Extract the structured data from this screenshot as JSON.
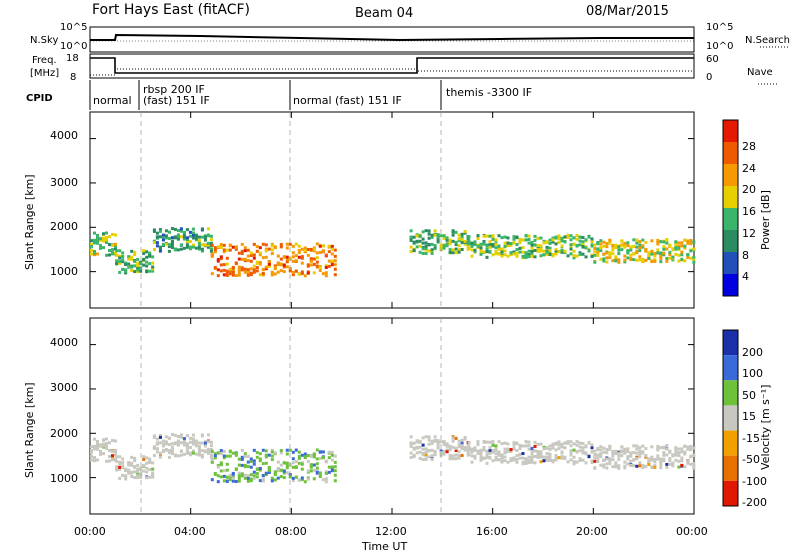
{
  "header": {
    "title": "Fort Hays East (fitACF)",
    "beam": "Beam 04",
    "date": "08/Mar/2015"
  },
  "noise_panel": {
    "left_label": "N.Sky",
    "left_ticks": [
      "10^5",
      "10^0"
    ],
    "right_label": "N.Search",
    "right_ticks": [
      "10^5",
      "10^0"
    ]
  },
  "freq_panel": {
    "left_label_1": "Freq.",
    "left_label_2": "[MHz]",
    "left_ticks": [
      "18",
      "8"
    ],
    "right_label": "Nave",
    "right_ticks": [
      "60",
      "0"
    ],
    "cpid_label": "CPID"
  },
  "cpid_segments": [
    {
      "text": "normal",
      "start_hour": 0.0
    },
    {
      "text": "rbsp 200 IF",
      "start_hour": 2.0
    },
    {
      "text": "(fast) 151 IF",
      "start_hour": 2.0
    },
    {
      "text": "normal (fast) 151 IF",
      "start_hour": 8.0
    },
    {
      "text": "themis -3300 IF",
      "start_hour": 14.0
    }
  ],
  "power_panel": {
    "ylabel": "Slant Range [km]",
    "yticks": [
      "4000",
      "3000",
      "2000",
      "1000"
    ],
    "colorbar_label": "Power [dB]",
    "colorbar_ticks": [
      "28",
      "24",
      "20",
      "16",
      "12",
      "8",
      "4"
    ]
  },
  "velocity_panel": {
    "ylabel": "Slant Range [km]",
    "yticks": [
      "4000",
      "3000",
      "2000",
      "1000"
    ],
    "colorbar_label": "Velocity [m s⁻¹]",
    "colorbar_ticks": [
      "200",
      "100",
      "50",
      "15",
      "-15",
      "-50",
      "-100",
      "-200"
    ]
  },
  "xaxis": {
    "label": "Time UT",
    "ticks": [
      "00:00",
      "04:00",
      "08:00",
      "12:00",
      "16:00",
      "20:00",
      "00:00"
    ]
  },
  "chart_data": {
    "type": "heatmap",
    "x_range_hours": [
      0,
      24
    ],
    "y_range_km": [
      180,
      4600
    ],
    "scatter_bands": [
      {
        "start_hour": 0.0,
        "end_hour": 1.0,
        "center_km": 1650,
        "power_db": 16
      },
      {
        "start_hour": 1.0,
        "end_hour": 2.5,
        "center_km": 1250,
        "power_db": 14
      },
      {
        "start_hour": 2.5,
        "end_hour": 4.8,
        "center_km": 1750,
        "power_db": 12
      },
      {
        "start_hour": 4.8,
        "end_hour": 9.8,
        "center_km": 1300,
        "power_db": 24
      },
      {
        "start_hour": 12.7,
        "end_hour": 15.0,
        "center_km": 1700,
        "power_db": 14
      },
      {
        "start_hour": 15.0,
        "end_hour": 20.0,
        "center_km": 1600,
        "power_db": 15
      },
      {
        "start_hour": 20.0,
        "end_hour": 24.0,
        "center_km": 1500,
        "power_db": 18
      }
    ],
    "frequency_mhz": [
      {
        "start_hour": 0.0,
        "end_hour": 1.0,
        "value": 18
      },
      {
        "start_hour": 1.0,
        "end_hour": 13.0,
        "value": 10
      },
      {
        "start_hour": 13.0,
        "end_hour": 24.0,
        "value": 18
      }
    ]
  }
}
